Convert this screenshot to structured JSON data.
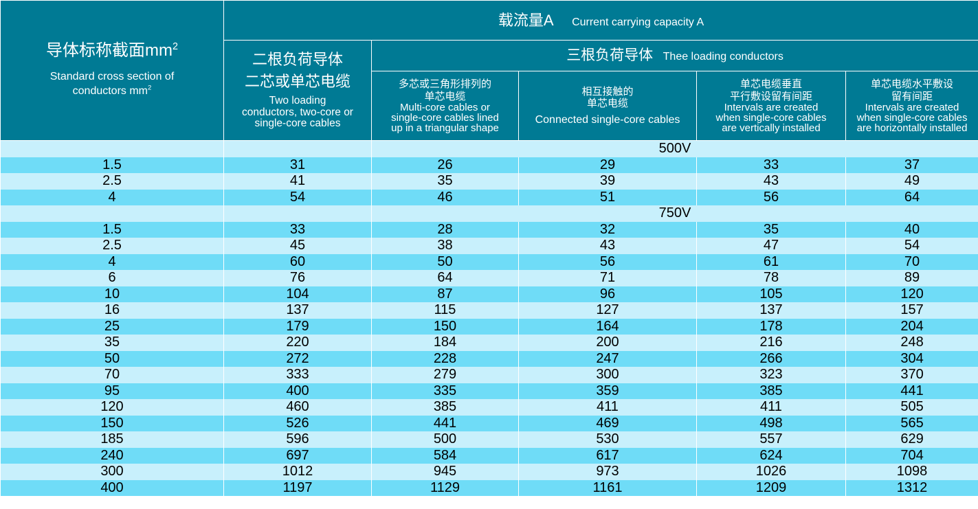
{
  "header": {
    "size_col": {
      "zh": "导体标称截面mm",
      "zh_sup": "2",
      "en_line1": "Standard cross section of",
      "en_line2": "conductors mm",
      "en_sup": "2"
    },
    "top": {
      "zh": "载流量A",
      "en": "Current carrying capacity A"
    },
    "two": {
      "zh_line1": "二根负荷导体",
      "zh_line2": "二芯或单芯电缆",
      "en_line1": "Two loading",
      "en_line2": "conductors, two-core or",
      "en_line3": "single-core cables"
    },
    "three": {
      "zh": "三根负荷导体",
      "en": "Thee loading conductors"
    },
    "sub": [
      {
        "zh_line1": "多芯或三角形排列的",
        "zh_line2": "单芯电缆",
        "en_line1": "Multi-core cables or",
        "en_line2": "single-core cables lined",
        "en_line3": "up in a triangular shape"
      },
      {
        "zh_line1": "相互接触的",
        "zh_line2": "单芯电缆",
        "en_line1": "Connected single-core cables",
        "en_line2": "",
        "en_line3": ""
      },
      {
        "zh_line1": "单芯电缆垂直",
        "zh_line2": "平行敷设留有间距",
        "en_line1": "Intervals are created",
        "en_line2": "when single-core cables",
        "en_line3": "are vertically installed"
      },
      {
        "zh_line1": "单芯电缆水平敷设",
        "zh_line2": "留有间距",
        "en_line1": "Intervals are created",
        "en_line2": "when single-core cables",
        "en_line3": "are horizontally installed"
      }
    ]
  },
  "sections": [
    {
      "voltage": "500V",
      "rows": [
        [
          "1.5",
          "31",
          "26",
          "29",
          "33",
          "37"
        ],
        [
          "2.5",
          "41",
          "35",
          "39",
          "43",
          "49"
        ],
        [
          "4",
          "54",
          "46",
          "51",
          "56",
          "64"
        ]
      ]
    },
    {
      "voltage": "750V",
      "rows": [
        [
          "1.5",
          "33",
          "28",
          "32",
          "35",
          "40"
        ],
        [
          "2.5",
          "45",
          "38",
          "43",
          "47",
          "54"
        ],
        [
          "4",
          "60",
          "50",
          "56",
          "61",
          "70"
        ],
        [
          "6",
          "76",
          "64",
          "71",
          "78",
          "89"
        ],
        [
          "10",
          "104",
          "87",
          "96",
          "105",
          "120"
        ],
        [
          "16",
          "137",
          "115",
          "127",
          "137",
          "157"
        ],
        [
          "25",
          "179",
          "150",
          "164",
          "178",
          "204"
        ],
        [
          "35",
          "220",
          "184",
          "200",
          "216",
          "248"
        ],
        [
          "50",
          "272",
          "228",
          "247",
          "266",
          "304"
        ],
        [
          "70",
          "333",
          "279",
          "300",
          "323",
          "370"
        ],
        [
          "95",
          "400",
          "335",
          "359",
          "385",
          "441"
        ],
        [
          "120",
          "460",
          "385",
          "411",
          "411",
          "505"
        ],
        [
          "150",
          "526",
          "441",
          "469",
          "498",
          "565"
        ],
        [
          "185",
          "596",
          "500",
          "530",
          "557",
          "629"
        ],
        [
          "240",
          "697",
          "584",
          "617",
          "624",
          "704"
        ],
        [
          "300",
          "1012",
          "945",
          "973",
          "1026",
          "1098"
        ],
        [
          "400",
          "1197",
          "1129",
          "1161",
          "1209",
          "1312"
        ]
      ]
    }
  ],
  "colors": {
    "header_bg": "#007a94",
    "row_light": "#c8f0fc",
    "row_dark": "#6fdcf7"
  }
}
